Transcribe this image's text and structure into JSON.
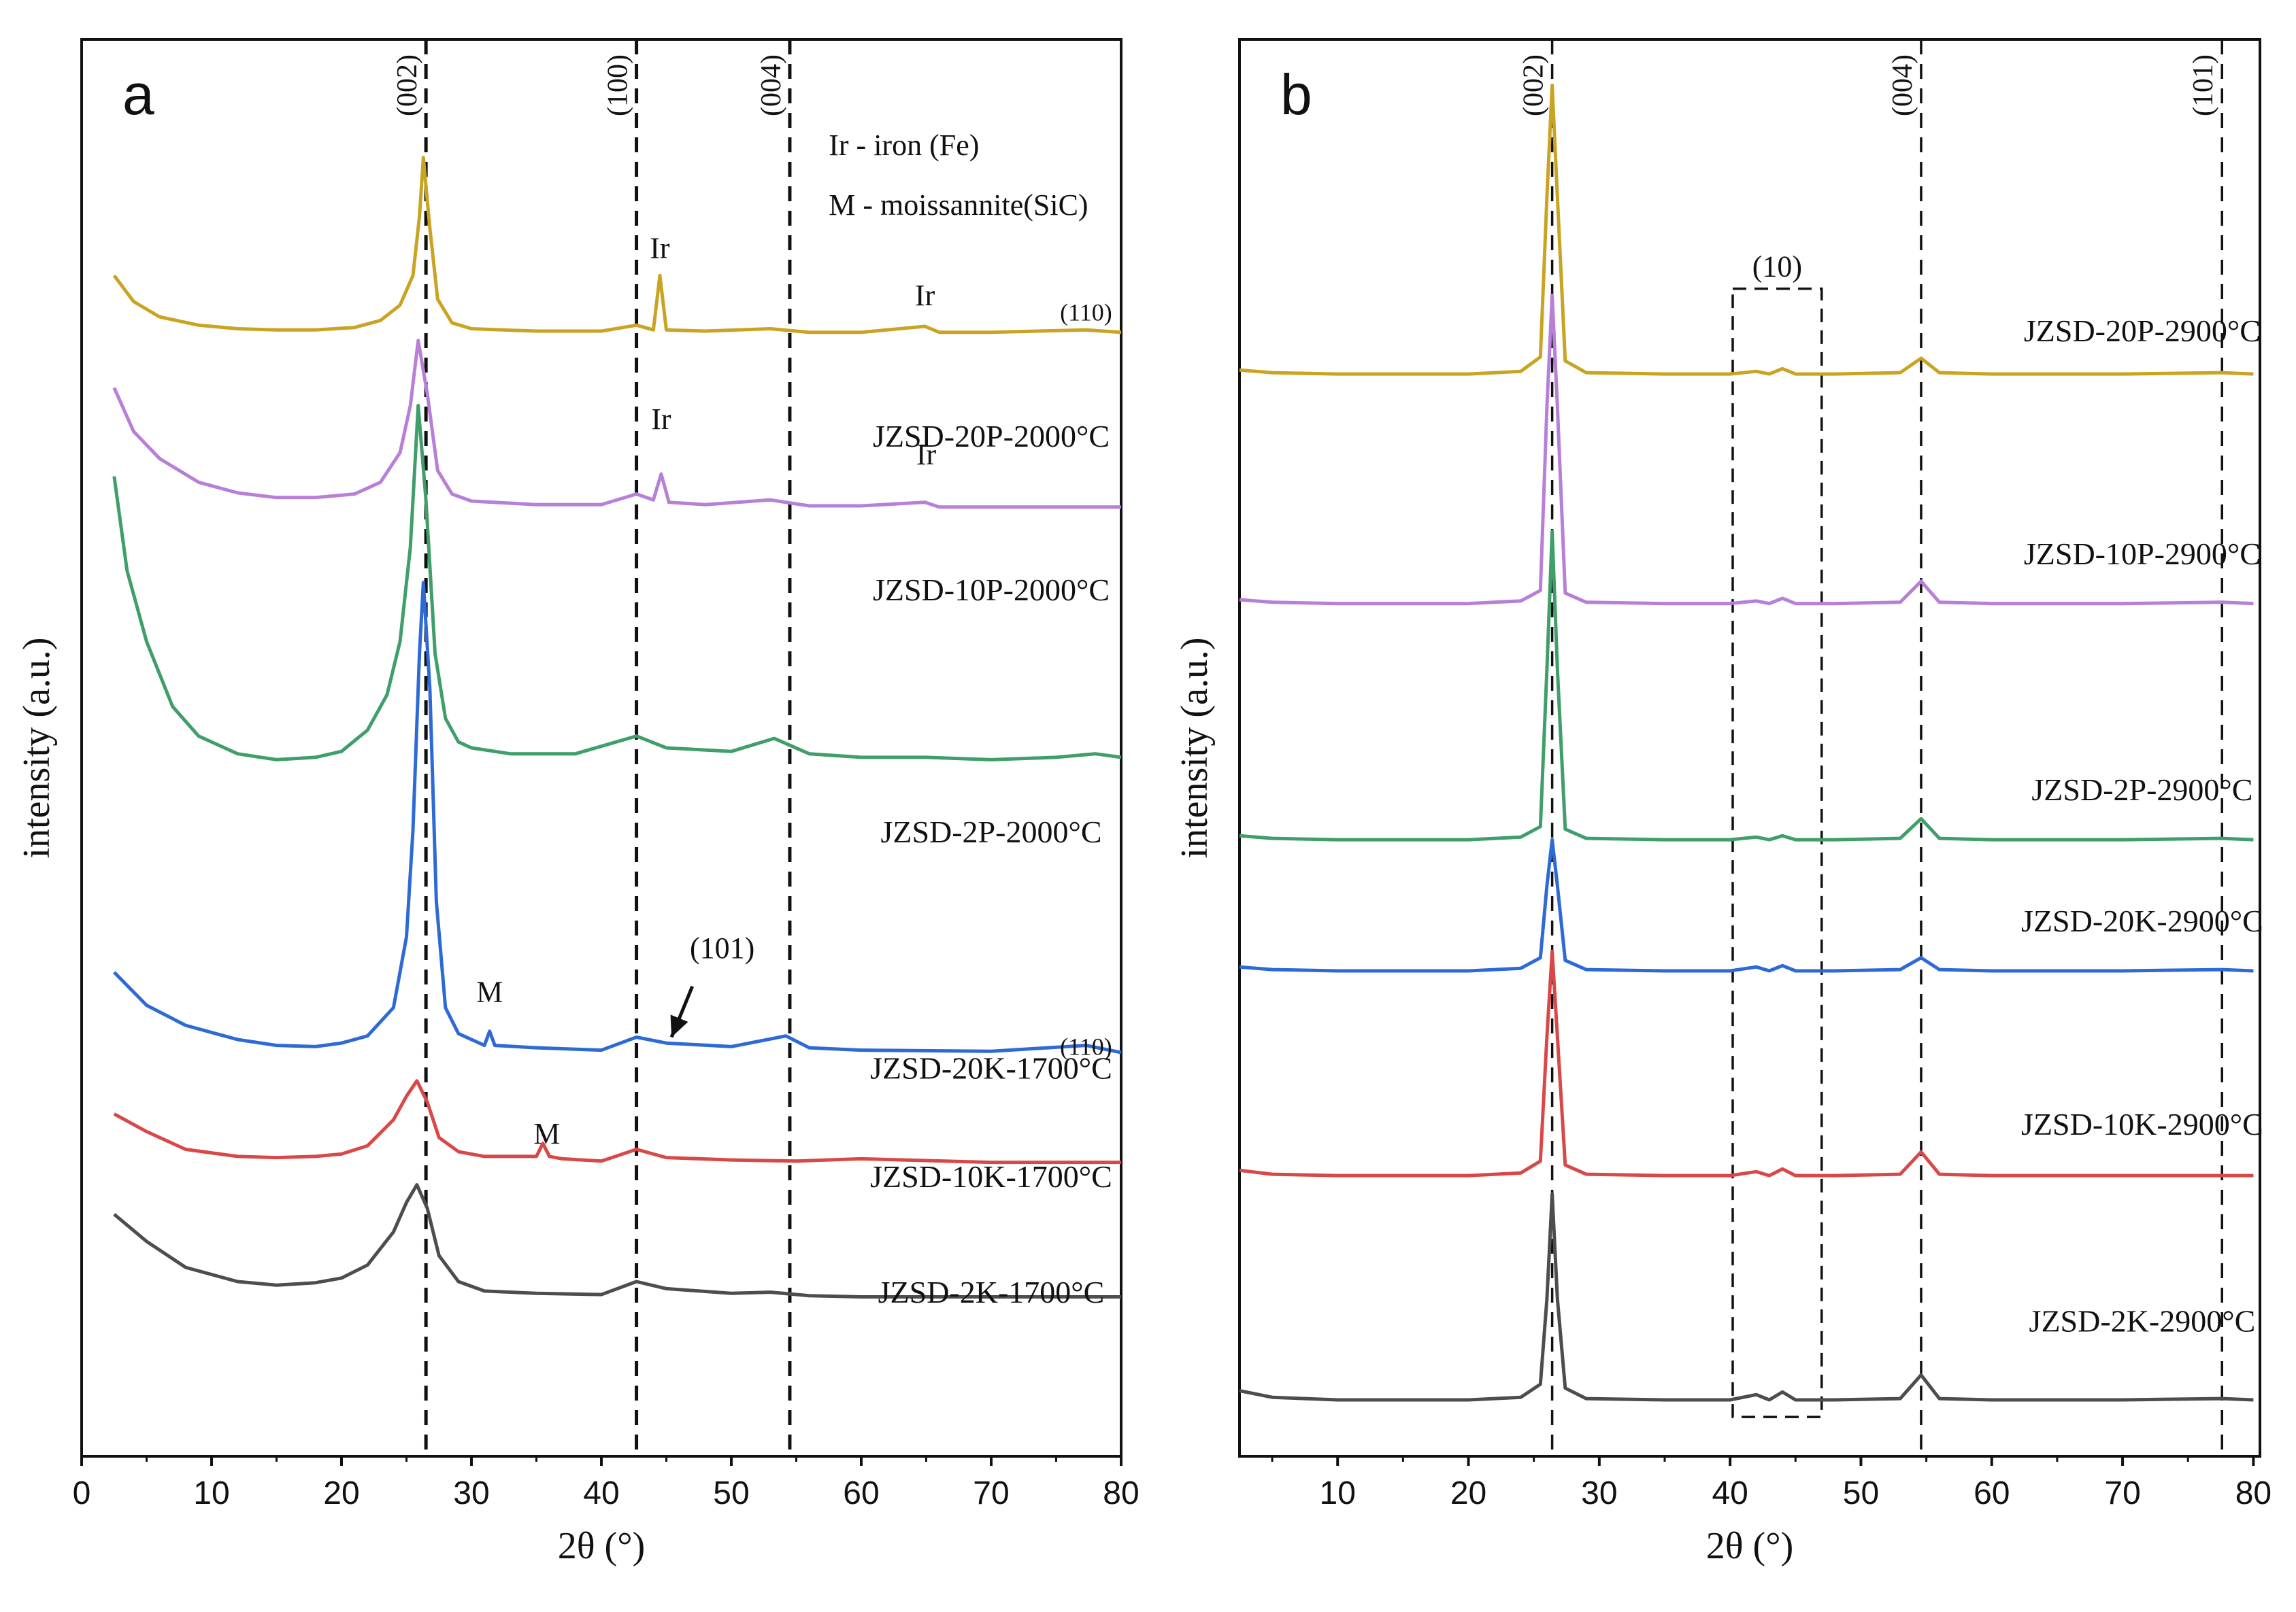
{
  "chart_data": [
    {
      "type": "line",
      "panel": "a",
      "panel_label": "a",
      "xlabel": "2θ (°)",
      "ylabel": "intensity (a.u.)",
      "xlim": [
        0,
        80
      ],
      "xticks": [
        0,
        10,
        20,
        30,
        40,
        50,
        60,
        70,
        80
      ],
      "ylim": [
        -0.5,
        11.5
      ],
      "y_units": "arbitrary (stacked traces, offset per series)",
      "reference_lines": [
        {
          "x": 26.5,
          "label": "(002)"
        },
        {
          "x": 42.7,
          "label": "(100)"
        },
        {
          "x": 54.5,
          "label": "(004)"
        }
      ],
      "legend_text": [
        "Ir - iron (Fe)",
        "M - moissannite(SiC)"
      ],
      "peak_annotations": [
        {
          "text": "Ir",
          "x": 44.5,
          "y": 9.65
        },
        {
          "text": "Ir",
          "x": 64.9,
          "y": 9.25
        },
        {
          "text": "(110)",
          "x": 77.3,
          "y": 9.12
        },
        {
          "text": "Ir",
          "x": 44.6,
          "y": 8.2
        },
        {
          "text": "Ir",
          "x": 65.0,
          "y": 7.9
        },
        {
          "text": "M",
          "x": 31.4,
          "y": 3.35
        },
        {
          "text": "(101)",
          "x": 49.3,
          "y": 3.72
        },
        {
          "text": "(110)",
          "x": 77.3,
          "y": 2.9
        },
        {
          "text": "M",
          "x": 35.8,
          "y": 2.15
        }
      ],
      "arrow_annotation": {
        "from": [
          47.0,
          3.48
        ],
        "to": [
          45.4,
          3.05
        ]
      },
      "series": [
        {
          "name": "JZSD-2K-1700°C",
          "color": "#4d4d4d",
          "label_pos": [
            70.0,
            0.8
          ],
          "x": [
            2.5,
            5,
            8,
            12,
            15,
            18,
            20,
            22,
            24,
            25,
            25.8,
            26.6,
            27.5,
            29,
            31,
            35,
            40,
            42.7,
            45,
            50,
            53,
            56,
            60,
            70,
            80
          ],
          "y": [
            1.55,
            1.32,
            1.1,
            0.98,
            0.95,
            0.97,
            1.01,
            1.12,
            1.4,
            1.65,
            1.8,
            1.6,
            1.2,
            0.98,
            0.9,
            0.88,
            0.87,
            0.98,
            0.92,
            0.88,
            0.89,
            0.86,
            0.85,
            0.85,
            0.85
          ]
        },
        {
          "name": "JZSD-10K-1700°C",
          "color": "#d94848",
          "label_pos": [
            70.0,
            1.78
          ],
          "x": [
            2.5,
            5,
            8,
            12,
            15,
            18,
            20,
            22,
            24,
            25,
            25.8,
            26.6,
            27.5,
            29,
            31,
            35,
            35.5,
            36,
            37,
            40,
            42.7,
            45,
            50,
            55,
            60,
            70,
            80
          ],
          "y": [
            2.4,
            2.25,
            2.1,
            2.04,
            2.03,
            2.04,
            2.06,
            2.13,
            2.35,
            2.55,
            2.68,
            2.5,
            2.2,
            2.08,
            2.04,
            2.04,
            2.15,
            2.04,
            2.02,
            2.0,
            2.1,
            2.03,
            2.01,
            2.0,
            2.02,
            1.99,
            1.99
          ]
        },
        {
          "name": "JZSD-20K-1700°C",
          "color": "#2e6ad6",
          "label_pos": [
            70.0,
            2.7
          ],
          "x": [
            2.5,
            5,
            8,
            12,
            15,
            18,
            20,
            22,
            24,
            25,
            25.5,
            26.0,
            26.3,
            26.8,
            27.3,
            28,
            29,
            31,
            31.4,
            31.8,
            35,
            40,
            42.7,
            45,
            50,
            54.2,
            56,
            60,
            70,
            77.3,
            80
          ],
          "y": [
            3.6,
            3.32,
            3.15,
            3.03,
            2.98,
            2.97,
            3.0,
            3.06,
            3.3,
            3.9,
            4.8,
            6.3,
            6.9,
            6.0,
            4.2,
            3.3,
            3.08,
            2.98,
            3.1,
            2.98,
            2.96,
            2.94,
            3.05,
            3.0,
            2.97,
            3.06,
            2.96,
            2.94,
            2.93,
            2.98,
            2.92
          ]
        },
        {
          "name": "JZSD-2P-2000°C",
          "color": "#3f9e6a",
          "label_pos": [
            70.0,
            4.7
          ],
          "x": [
            2.5,
            3.5,
            5,
            7,
            9,
            12,
            15,
            18,
            20,
            22,
            23.5,
            24.5,
            25.3,
            25.9,
            26.5,
            27.2,
            28,
            29,
            30,
            33,
            38,
            42.7,
            45,
            50,
            53.3,
            56,
            60,
            65,
            70,
            75,
            78,
            80
          ],
          "y": [
            7.8,
            7.0,
            6.4,
            5.85,
            5.6,
            5.45,
            5.4,
            5.42,
            5.47,
            5.65,
            5.95,
            6.4,
            7.2,
            8.4,
            7.6,
            6.3,
            5.75,
            5.55,
            5.5,
            5.45,
            5.45,
            5.6,
            5.5,
            5.47,
            5.58,
            5.45,
            5.42,
            5.42,
            5.4,
            5.42,
            5.45,
            5.42
          ]
        },
        {
          "name": "JZSD-10P-2000°C",
          "color": "#b77fd8",
          "label_pos": [
            70.0,
            6.75
          ],
          "x": [
            2.5,
            4,
            6,
            9,
            12,
            15,
            18,
            21,
            23,
            24.5,
            25.3,
            25.9,
            26.6,
            27.4,
            28.5,
            30,
            35,
            40,
            42.7,
            44,
            44.6,
            45.2,
            48,
            53,
            56,
            60,
            64.9,
            66,
            70,
            80
          ],
          "y": [
            8.55,
            8.18,
            7.95,
            7.75,
            7.66,
            7.62,
            7.62,
            7.65,
            7.75,
            8.0,
            8.4,
            8.95,
            8.5,
            7.85,
            7.65,
            7.59,
            7.56,
            7.56,
            7.65,
            7.6,
            7.82,
            7.58,
            7.56,
            7.6,
            7.55,
            7.55,
            7.58,
            7.54,
            7.54,
            7.54
          ]
        },
        {
          "name": "JZSD-20P-2000°C",
          "color": "#c9a423",
          "label_pos": [
            70.0,
            8.05
          ],
          "x": [
            2.5,
            4,
            6,
            9,
            12,
            15,
            18,
            21,
            23,
            24.5,
            25.5,
            26.0,
            26.3,
            26.8,
            27.4,
            28.5,
            30,
            35,
            40,
            42.7,
            44,
            44.5,
            45,
            48,
            53,
            56,
            60,
            64.9,
            66,
            70,
            77.3,
            80
          ],
          "y": [
            9.5,
            9.28,
            9.15,
            9.08,
            9.05,
            9.04,
            9.04,
            9.06,
            9.12,
            9.25,
            9.5,
            10.0,
            10.5,
            9.9,
            9.3,
            9.1,
            9.05,
            9.03,
            9.03,
            9.08,
            9.04,
            9.5,
            9.04,
            9.03,
            9.05,
            9.02,
            9.02,
            9.07,
            9.02,
            9.02,
            9.04,
            9.02
          ]
        }
      ]
    },
    {
      "type": "line",
      "panel": "b",
      "panel_label": "b",
      "xlabel": "2θ (°)",
      "ylabel": "intensity (a.u.)",
      "xlim": [
        2.5,
        80.5
      ],
      "xticks": [
        10,
        20,
        30,
        40,
        50,
        60,
        70,
        80
      ],
      "ylim": [
        -0.4,
        10.4
      ],
      "y_units": "arbitrary (stacked traces, offset per series)",
      "reference_lines": [
        {
          "x": 26.4,
          "label": "(002)"
        },
        {
          "x": 54.6,
          "label": "(004)"
        },
        {
          "x": 77.6,
          "label": "(101)"
        }
      ],
      "highlight_box": {
        "x0": 40.2,
        "x1": 47.0,
        "y0": -0.1,
        "y1": 8.5,
        "label": "(10)"
      },
      "series": [
        {
          "name": "JZSD-2K-2900°C",
          "color": "#4d4d4d",
          "label_pos": [
            71.5,
            0.55
          ],
          "x": [
            2.5,
            5,
            10,
            20,
            24,
            25.5,
            26.0,
            26.4,
            26.8,
            27.4,
            29,
            35,
            40,
            42,
            43,
            44,
            45,
            48,
            53,
            54.6,
            56,
            60,
            70,
            77.6,
            80
          ],
          "y": [
            0.1,
            0.05,
            0.03,
            0.03,
            0.05,
            0.15,
            0.8,
            1.6,
            0.8,
            0.12,
            0.04,
            0.03,
            0.03,
            0.07,
            0.03,
            0.09,
            0.03,
            0.03,
            0.04,
            0.22,
            0.04,
            0.03,
            0.03,
            0.04,
            0.03
          ]
        },
        {
          "name": "JZSD-10K-2900°C",
          "color": "#d94848",
          "label_pos": [
            71.5,
            2.05
          ],
          "x": [
            2.5,
            5,
            10,
            20,
            24,
            25.5,
            26.0,
            26.4,
            26.8,
            27.4,
            29,
            35,
            40,
            42,
            43,
            44,
            45,
            48,
            53,
            54.6,
            56,
            60,
            70,
            77.6,
            80
          ],
          "y": [
            1.78,
            1.75,
            1.74,
            1.74,
            1.76,
            1.85,
            2.8,
            3.45,
            2.8,
            1.82,
            1.75,
            1.74,
            1.74,
            1.77,
            1.74,
            1.79,
            1.74,
            1.74,
            1.75,
            1.92,
            1.75,
            1.74,
            1.74,
            1.74,
            1.74
          ]
        },
        {
          "name": "JZSD-20K-2900°C",
          "color": "#2e6ad6",
          "label_pos": [
            71.5,
            3.6
          ],
          "x": [
            2.5,
            5,
            10,
            20,
            24,
            25.5,
            26.0,
            26.4,
            26.8,
            27.4,
            29,
            35,
            40,
            42,
            43,
            44,
            45,
            48,
            53,
            54.6,
            56,
            60,
            70,
            77.6,
            80
          ],
          "y": [
            3.33,
            3.31,
            3.3,
            3.3,
            3.32,
            3.4,
            3.95,
            4.3,
            3.95,
            3.38,
            3.31,
            3.3,
            3.3,
            3.33,
            3.3,
            3.34,
            3.3,
            3.3,
            3.31,
            3.4,
            3.31,
            3.3,
            3.3,
            3.31,
            3.3
          ]
        },
        {
          "name": "JZSD-2P-2900°C",
          "color": "#3f9e6a",
          "label_pos": [
            71.5,
            4.6
          ],
          "x": [
            2.5,
            5,
            10,
            20,
            24,
            25.5,
            26.0,
            26.4,
            26.8,
            27.4,
            29,
            35,
            40,
            42,
            43,
            44,
            45,
            48,
            53,
            54.6,
            56,
            60,
            70,
            77.6,
            80
          ],
          "y": [
            4.33,
            4.31,
            4.3,
            4.3,
            4.32,
            4.4,
            5.6,
            6.65,
            5.6,
            4.38,
            4.31,
            4.3,
            4.3,
            4.32,
            4.3,
            4.33,
            4.3,
            4.3,
            4.31,
            4.46,
            4.31,
            4.3,
            4.3,
            4.31,
            4.3
          ]
        },
        {
          "name": "JZSD-10P-2900°C",
          "color": "#b77fd8",
          "label_pos": [
            71.5,
            6.4
          ],
          "x": [
            2.5,
            5,
            10,
            20,
            24,
            25.5,
            26.0,
            26.4,
            26.8,
            27.4,
            29,
            35,
            40,
            42,
            43,
            44,
            45,
            48,
            53,
            54.6,
            56,
            60,
            70,
            77.6,
            80
          ],
          "y": [
            6.13,
            6.11,
            6.1,
            6.1,
            6.12,
            6.2,
            7.6,
            8.45,
            7.6,
            6.18,
            6.11,
            6.1,
            6.1,
            6.12,
            6.1,
            6.14,
            6.1,
            6.1,
            6.11,
            6.27,
            6.11,
            6.1,
            6.1,
            6.11,
            6.1
          ]
        },
        {
          "name": "JZSD-20P-2900°C",
          "color": "#c9a423",
          "label_pos": [
            71.5,
            8.1
          ],
          "x": [
            2.5,
            5,
            10,
            20,
            24,
            25.5,
            26.0,
            26.4,
            26.8,
            27.4,
            29,
            35,
            40,
            42,
            43,
            44,
            45,
            48,
            53,
            54.6,
            56,
            60,
            70,
            77.6,
            80
          ],
          "y": [
            7.88,
            7.86,
            7.85,
            7.85,
            7.87,
            7.98,
            9.2,
            10.05,
            9.2,
            7.95,
            7.86,
            7.85,
            7.85,
            7.87,
            7.85,
            7.89,
            7.85,
            7.85,
            7.86,
            7.97,
            7.86,
            7.85,
            7.85,
            7.86,
            7.85
          ]
        }
      ]
    }
  ]
}
